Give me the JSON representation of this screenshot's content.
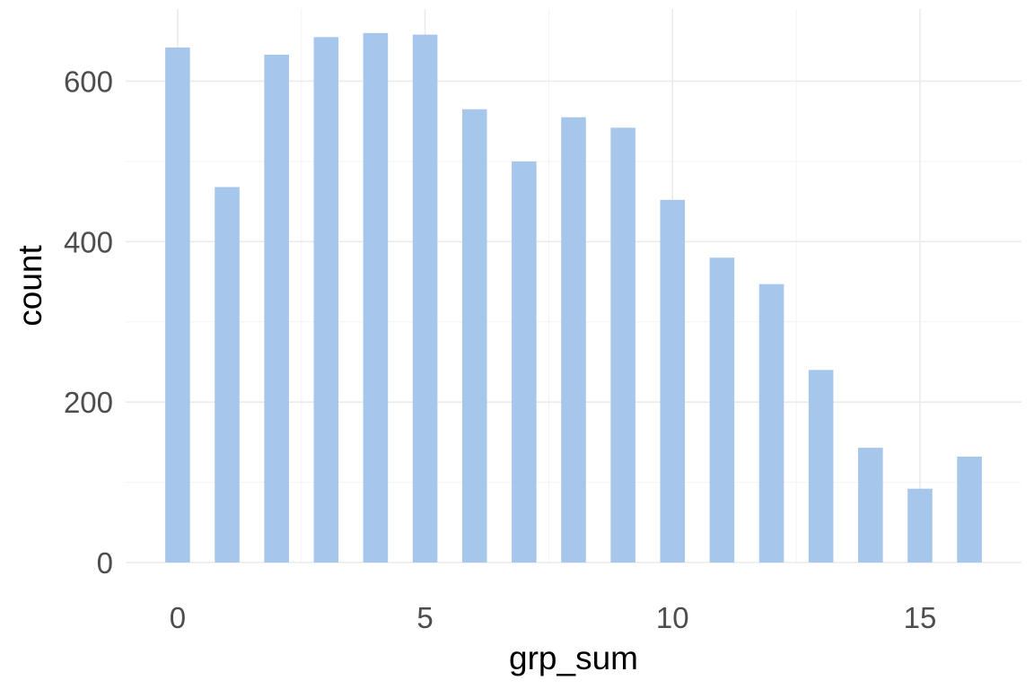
{
  "chart_data": {
    "type": "bar",
    "title": "",
    "xlabel": "grp_sum",
    "ylabel": "count",
    "x": [
      0,
      1,
      2,
      3,
      4,
      5,
      6,
      7,
      8,
      9,
      10,
      11,
      12,
      13,
      14,
      15,
      16
    ],
    "values": [
      642,
      468,
      633,
      655,
      660,
      658,
      565,
      500,
      555,
      542,
      452,
      380,
      347,
      240,
      143,
      92,
      132
    ],
    "xlim": [
      -1.05,
      17.05
    ],
    "ylim": [
      0,
      690
    ],
    "x_ticks": [
      0,
      5,
      10,
      15
    ],
    "y_ticks": [
      0,
      200,
      400,
      600
    ],
    "x_tick_labels": [
      "0",
      "5",
      "10",
      "15"
    ],
    "y_tick_labels": [
      "0",
      "200",
      "400",
      "600"
    ],
    "grid": true,
    "legend": "none",
    "bar_color": "#a7c6ec",
    "background": "#ffffff"
  }
}
